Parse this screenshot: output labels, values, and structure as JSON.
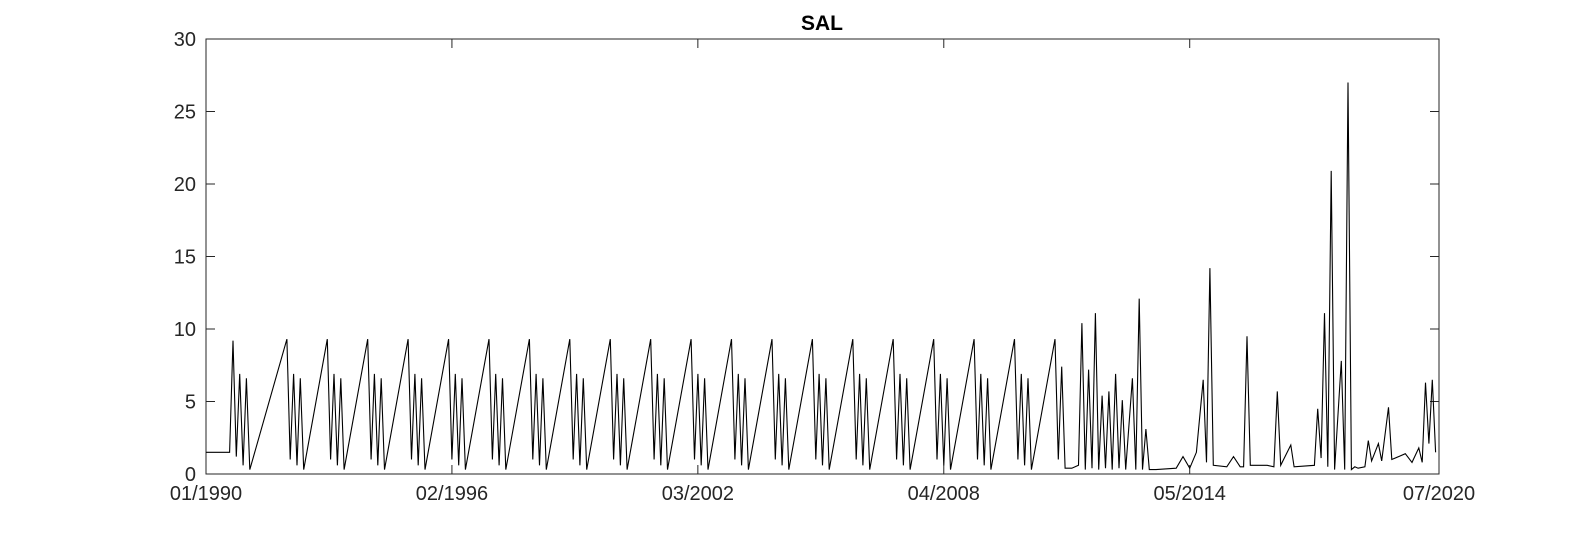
{
  "chart_data": {
    "type": "line",
    "title": "SAL",
    "xlabel": "",
    "ylabel": "",
    "xlim": [
      "1990-01",
      "2020-07"
    ],
    "ylim": [
      0,
      30
    ],
    "grid": false,
    "x_ticks": [
      "01/1990",
      "02/1996",
      "03/2002",
      "04/2008",
      "05/2014",
      "07/2020"
    ],
    "y_ticks": [
      "0",
      "5",
      "10",
      "15",
      "20",
      "25",
      "30"
    ],
    "line_color": "#000000",
    "series": [
      {
        "values": [
          {
            "x": "1990-01",
            "y": 1.5
          },
          {
            "x": "1990-08",
            "y": 1.5
          },
          {
            "x": "1990-09",
            "y": 9.2
          },
          {
            "x": "1990-10",
            "y": 1.2
          },
          {
            "x": "1990-11",
            "y": 6.9
          },
          {
            "x": "1990-12",
            "y": 0.6
          },
          {
            "x": "1991-01",
            "y": 6.6
          },
          {
            "x": "1991-02",
            "y": 0.3
          },
          {
            "x": "1992-01",
            "y": 9.3
          },
          {
            "x": "1992-02",
            "y": 1.0
          },
          {
            "x": "1992-03",
            "y": 6.9
          },
          {
            "x": "1992-04",
            "y": 0.6
          },
          {
            "x": "1992-05",
            "y": 6.6
          },
          {
            "x": "1992-06",
            "y": 0.3
          },
          {
            "x": "1993-01",
            "y": 9.3
          },
          {
            "x": "1993-02",
            "y": 1.0
          },
          {
            "x": "1993-03",
            "y": 6.9
          },
          {
            "x": "1993-04",
            "y": 0.6
          },
          {
            "x": "1993-05",
            "y": 6.6
          },
          {
            "x": "1993-06",
            "y": 0.3
          },
          {
            "x": "1994-01",
            "y": 9.3
          },
          {
            "x": "1994-02",
            "y": 1.0
          },
          {
            "x": "1994-03",
            "y": 6.9
          },
          {
            "x": "1994-04",
            "y": 0.6
          },
          {
            "x": "1994-05",
            "y": 6.6
          },
          {
            "x": "1994-06",
            "y": 0.3
          },
          {
            "x": "1995-01",
            "y": 9.3
          },
          {
            "x": "1995-02",
            "y": 1.0
          },
          {
            "x": "1995-03",
            "y": 6.9
          },
          {
            "x": "1995-04",
            "y": 0.6
          },
          {
            "x": "1995-05",
            "y": 6.6
          },
          {
            "x": "1995-06",
            "y": 0.3
          },
          {
            "x": "1996-01",
            "y": 9.3
          },
          {
            "x": "1996-02",
            "y": 1.0
          },
          {
            "x": "1996-03",
            "y": 6.9
          },
          {
            "x": "1996-04",
            "y": 0.6
          },
          {
            "x": "1996-05",
            "y": 6.6
          },
          {
            "x": "1996-06",
            "y": 0.3
          },
          {
            "x": "1997-01",
            "y": 9.3
          },
          {
            "x": "1997-02",
            "y": 1.0
          },
          {
            "x": "1997-03",
            "y": 6.9
          },
          {
            "x": "1997-04",
            "y": 0.6
          },
          {
            "x": "1997-05",
            "y": 6.6
          },
          {
            "x": "1997-06",
            "y": 0.3
          },
          {
            "x": "1998-01",
            "y": 9.3
          },
          {
            "x": "1998-02",
            "y": 1.0
          },
          {
            "x": "1998-03",
            "y": 6.9
          },
          {
            "x": "1998-04",
            "y": 0.6
          },
          {
            "x": "1998-05",
            "y": 6.6
          },
          {
            "x": "1998-06",
            "y": 0.3
          },
          {
            "x": "1999-01",
            "y": 9.3
          },
          {
            "x": "1999-02",
            "y": 1.0
          },
          {
            "x": "1999-03",
            "y": 6.9
          },
          {
            "x": "1999-04",
            "y": 0.6
          },
          {
            "x": "1999-05",
            "y": 6.6
          },
          {
            "x": "1999-06",
            "y": 0.3
          },
          {
            "x": "2000-01",
            "y": 9.3
          },
          {
            "x": "2000-02",
            "y": 1.0
          },
          {
            "x": "2000-03",
            "y": 6.9
          },
          {
            "x": "2000-04",
            "y": 0.6
          },
          {
            "x": "2000-05",
            "y": 6.6
          },
          {
            "x": "2000-06",
            "y": 0.3
          },
          {
            "x": "2001-01",
            "y": 9.3
          },
          {
            "x": "2001-02",
            "y": 1.0
          },
          {
            "x": "2001-03",
            "y": 6.9
          },
          {
            "x": "2001-04",
            "y": 0.6
          },
          {
            "x": "2001-05",
            "y": 6.6
          },
          {
            "x": "2001-06",
            "y": 0.3
          },
          {
            "x": "2002-01",
            "y": 9.3
          },
          {
            "x": "2002-02",
            "y": 1.0
          },
          {
            "x": "2002-03",
            "y": 6.9
          },
          {
            "x": "2002-04",
            "y": 0.6
          },
          {
            "x": "2002-05",
            "y": 6.6
          },
          {
            "x": "2002-06",
            "y": 0.3
          },
          {
            "x": "2003-01",
            "y": 9.3
          },
          {
            "x": "2003-02",
            "y": 1.0
          },
          {
            "x": "2003-03",
            "y": 6.9
          },
          {
            "x": "2003-04",
            "y": 0.6
          },
          {
            "x": "2003-05",
            "y": 6.6
          },
          {
            "x": "2003-06",
            "y": 0.3
          },
          {
            "x": "2004-01",
            "y": 9.3
          },
          {
            "x": "2004-02",
            "y": 1.0
          },
          {
            "x": "2004-03",
            "y": 6.9
          },
          {
            "x": "2004-04",
            "y": 0.6
          },
          {
            "x": "2004-05",
            "y": 6.6
          },
          {
            "x": "2004-06",
            "y": 0.3
          },
          {
            "x": "2005-01",
            "y": 9.3
          },
          {
            "x": "2005-02",
            "y": 1.0
          },
          {
            "x": "2005-03",
            "y": 6.9
          },
          {
            "x": "2005-04",
            "y": 0.6
          },
          {
            "x": "2005-05",
            "y": 6.6
          },
          {
            "x": "2005-06",
            "y": 0.3
          },
          {
            "x": "2006-01",
            "y": 9.3
          },
          {
            "x": "2006-02",
            "y": 1.0
          },
          {
            "x": "2006-03",
            "y": 6.9
          },
          {
            "x": "2006-04",
            "y": 0.6
          },
          {
            "x": "2006-05",
            "y": 6.6
          },
          {
            "x": "2006-06",
            "y": 0.3
          },
          {
            "x": "2007-01",
            "y": 9.3
          },
          {
            "x": "2007-02",
            "y": 1.0
          },
          {
            "x": "2007-03",
            "y": 6.9
          },
          {
            "x": "2007-04",
            "y": 0.6
          },
          {
            "x": "2007-05",
            "y": 6.6
          },
          {
            "x": "2007-06",
            "y": 0.3
          },
          {
            "x": "2008-01",
            "y": 9.3
          },
          {
            "x": "2008-02",
            "y": 1.0
          },
          {
            "x": "2008-03",
            "y": 6.9
          },
          {
            "x": "2008-04",
            "y": 0.6
          },
          {
            "x": "2008-05",
            "y": 6.6
          },
          {
            "x": "2008-06",
            "y": 0.3
          },
          {
            "x": "2009-01",
            "y": 9.3
          },
          {
            "x": "2009-02",
            "y": 1.0
          },
          {
            "x": "2009-03",
            "y": 6.9
          },
          {
            "x": "2009-04",
            "y": 0.6
          },
          {
            "x": "2009-05",
            "y": 6.6
          },
          {
            "x": "2009-06",
            "y": 0.3
          },
          {
            "x": "2010-01",
            "y": 9.3
          },
          {
            "x": "2010-02",
            "y": 1.0
          },
          {
            "x": "2010-03",
            "y": 6.9
          },
          {
            "x": "2010-04",
            "y": 0.6
          },
          {
            "x": "2010-05",
            "y": 6.6
          },
          {
            "x": "2010-06",
            "y": 0.3
          },
          {
            "x": "2011-01",
            "y": 9.3
          },
          {
            "x": "2011-02",
            "y": 1.0
          },
          {
            "x": "2011-03",
            "y": 7.4
          },
          {
            "x": "2011-04",
            "y": 0.4
          },
          {
            "x": "2011-06",
            "y": 0.4
          },
          {
            "x": "2011-08",
            "y": 0.6
          },
          {
            "x": "2011-09",
            "y": 10.4
          },
          {
            "x": "2011-10",
            "y": 0.3
          },
          {
            "x": "2011-11",
            "y": 7.2
          },
          {
            "x": "2011-12",
            "y": 0.4
          },
          {
            "x": "2012-01",
            "y": 11.1
          },
          {
            "x": "2012-02",
            "y": 0.3
          },
          {
            "x": "2012-03",
            "y": 5.4
          },
          {
            "x": "2012-04",
            "y": 0.4
          },
          {
            "x": "2012-05",
            "y": 5.7
          },
          {
            "x": "2012-06",
            "y": 0.3
          },
          {
            "x": "2012-07",
            "y": 6.9
          },
          {
            "x": "2012-08",
            "y": 0.4
          },
          {
            "x": "2012-09",
            "y": 5.1
          },
          {
            "x": "2012-10",
            "y": 0.3
          },
          {
            "x": "2012-12",
            "y": 6.6
          },
          {
            "x": "2013-01",
            "y": 0.3
          },
          {
            "x": "2013-02",
            "y": 12.1
          },
          {
            "x": "2013-03",
            "y": 0.3
          },
          {
            "x": "2013-04",
            "y": 3.1
          },
          {
            "x": "2013-05",
            "y": 0.3
          },
          {
            "x": "2013-07",
            "y": 0.3
          },
          {
            "x": "2014-01",
            "y": 0.4
          },
          {
            "x": "2014-03",
            "y": 1.2
          },
          {
            "x": "2014-05",
            "y": 0.4
          },
          {
            "x": "2014-07",
            "y": 1.5
          },
          {
            "x": "2014-09",
            "y": 6.5
          },
          {
            "x": "2014-10",
            "y": 0.8
          },
          {
            "x": "2014-11",
            "y": 14.2
          },
          {
            "x": "2014-12",
            "y": 0.6
          },
          {
            "x": "2015-04",
            "y": 0.5
          },
          {
            "x": "2015-06",
            "y": 1.2
          },
          {
            "x": "2015-08",
            "y": 0.5
          },
          {
            "x": "2015-09",
            "y": 0.5
          },
          {
            "x": "2015-10",
            "y": 9.5
          },
          {
            "x": "2015-11",
            "y": 0.6
          },
          {
            "x": "2016-01",
            "y": 0.6
          },
          {
            "x": "2016-04",
            "y": 0.6
          },
          {
            "x": "2016-06",
            "y": 0.5
          },
          {
            "x": "2016-07",
            "y": 5.7
          },
          {
            "x": "2016-08",
            "y": 0.6
          },
          {
            "x": "2016-11",
            "y": 2.0
          },
          {
            "x": "2016-12",
            "y": 0.5
          },
          {
            "x": "2017-06",
            "y": 0.6
          },
          {
            "x": "2017-07",
            "y": 4.5
          },
          {
            "x": "2017-08",
            "y": 1.1
          },
          {
            "x": "2017-09",
            "y": 11.1
          },
          {
            "x": "2017-10",
            "y": 0.5
          },
          {
            "x": "2017-11",
            "y": 20.9
          },
          {
            "x": "2017-12",
            "y": 0.3
          },
          {
            "x": "2018-02",
            "y": 7.8
          },
          {
            "x": "2018-03",
            "y": 0.3
          },
          {
            "x": "2018-04",
            "y": 27.0
          },
          {
            "x": "2018-05",
            "y": 0.3
          },
          {
            "x": "2018-06",
            "y": 0.5
          },
          {
            "x": "2018-07",
            "y": 0.4
          },
          {
            "x": "2018-09",
            "y": 0.5
          },
          {
            "x": "2018-10",
            "y": 2.3
          },
          {
            "x": "2018-11",
            "y": 0.9
          },
          {
            "x": "2019-01",
            "y": 2.1
          },
          {
            "x": "2019-02",
            "y": 0.9
          },
          {
            "x": "2019-04",
            "y": 4.6
          },
          {
            "x": "2019-05",
            "y": 1.0
          },
          {
            "x": "2019-07",
            "y": 1.2
          },
          {
            "x": "2019-09",
            "y": 1.4
          },
          {
            "x": "2019-11",
            "y": 0.8
          },
          {
            "x": "2020-01",
            "y": 1.8
          },
          {
            "x": "2020-02",
            "y": 0.8
          },
          {
            "x": "2020-03",
            "y": 6.3
          },
          {
            "x": "2020-04",
            "y": 2.1
          },
          {
            "x": "2020-05",
            "y": 6.5
          },
          {
            "x": "2020-06",
            "y": 1.5
          }
        ]
      }
    ]
  }
}
